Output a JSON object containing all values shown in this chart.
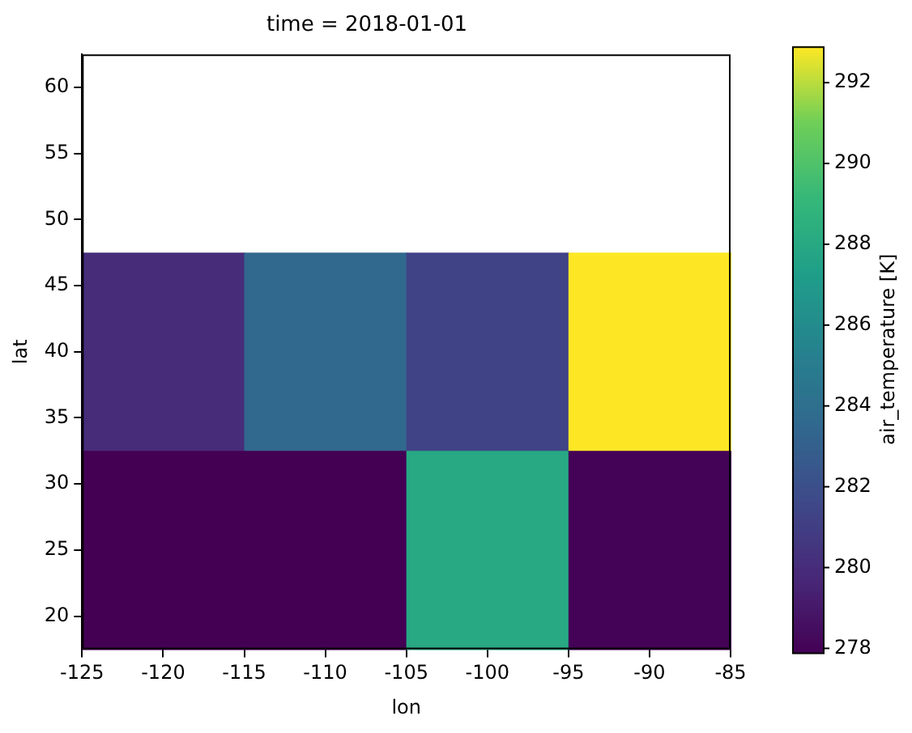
{
  "chart_data": {
    "type": "heatmap",
    "title": "time = 2018-01-01",
    "xlabel": "lon",
    "ylabel": "lat",
    "clabel": "air_temperature [K]",
    "x": [
      -120,
      -110,
      -100,
      -90
    ],
    "y": [
      40,
      25
    ],
    "cells": [
      [
        280.0,
        283.5,
        281.3,
        292.9
      ],
      [
        277.9,
        277.9,
        288.0,
        278.0
      ]
    ],
    "xlim": [
      -125,
      -85
    ],
    "xticks": [
      -125,
      -120,
      -115,
      -110,
      -105,
      -100,
      -95,
      -90,
      -85
    ],
    "ylim": [
      17.5,
      62.5
    ],
    "yticks": [
      20,
      25,
      30,
      35,
      40,
      45,
      50,
      55,
      60
    ],
    "clim": [
      277.9,
      292.9
    ],
    "cticks": [
      278,
      280,
      282,
      284,
      286,
      288,
      290,
      292
    ]
  }
}
